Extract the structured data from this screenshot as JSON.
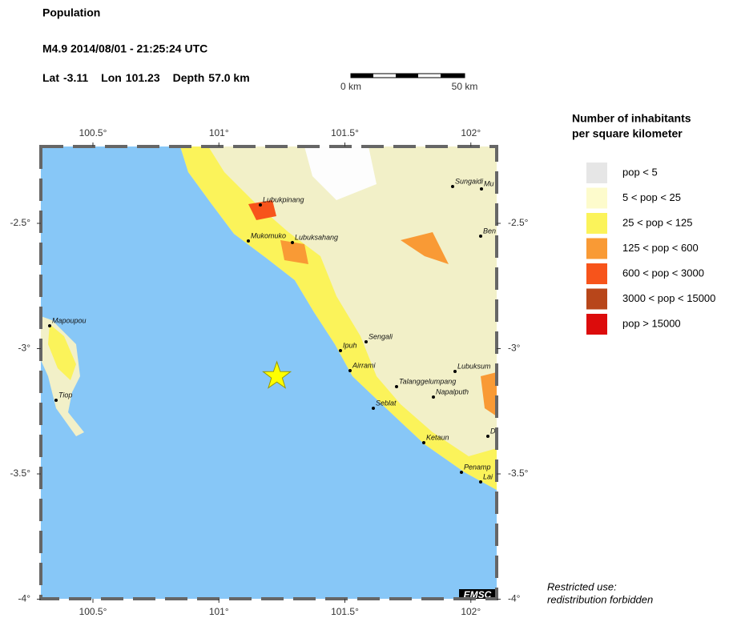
{
  "header": {
    "title": "Population",
    "event": "M4.9  2014/08/01 - 21:25:24 UTC",
    "lat_label": "Lat",
    "lat": -3.11,
    "lon_label": "Lon",
    "lon": 101.23,
    "depth_label": "Depth",
    "depth": "57.0 km"
  },
  "scale_bar": {
    "start": "0 km",
    "end": "50 km"
  },
  "map": {
    "lon_ticks": [
      {
        "value": 100.5,
        "label": "100.5°"
      },
      {
        "value": 101,
        "label": "101°"
      },
      {
        "value": 101.5,
        "label": "101.5°"
      },
      {
        "value": 102,
        "label": "102°"
      }
    ],
    "lat_ticks": [
      {
        "value": -2.5,
        "label": "-2.5°"
      },
      {
        "value": -3,
        "label": "-3°"
      },
      {
        "value": -3.5,
        "label": "-3.5°"
      },
      {
        "value": -4,
        "label": "-4°"
      }
    ],
    "places": [
      "Lubukpinang",
      "Mukomuko",
      "Lubuksahang",
      "Sungaidi",
      "Mu",
      "Ben",
      "Mapoupou",
      "Tiop",
      "Sengali",
      "Ipuh",
      "Airrami",
      "Lubuksum",
      "Talanggelumpang",
      "Seblat",
      "Napalputh",
      "D",
      "Ketaun",
      "Penamp",
      "Lai"
    ],
    "badge": "EMSC"
  },
  "legend": {
    "title": [
      "Number of inhabitants",
      "per square kilometer"
    ],
    "items": [
      {
        "label": "pop < 5",
        "color": "#e6e6e6"
      },
      {
        "label": "5 < pop < 25",
        "color": "#fdfbcc"
      },
      {
        "label": "25 < pop < 125",
        "color": "#fbf35a"
      },
      {
        "label": "125 < pop < 600",
        "color": "#f99a35"
      },
      {
        "label": "600 < pop < 3000",
        "color": "#f7541b"
      },
      {
        "label": "3000 < pop < 15000",
        "color": "#b8461a"
      },
      {
        "label": "pop > 15000",
        "color": "#dc0c0c"
      }
    ]
  },
  "footer": [
    "Restricted use:",
    "redistribution forbidden"
  ]
}
